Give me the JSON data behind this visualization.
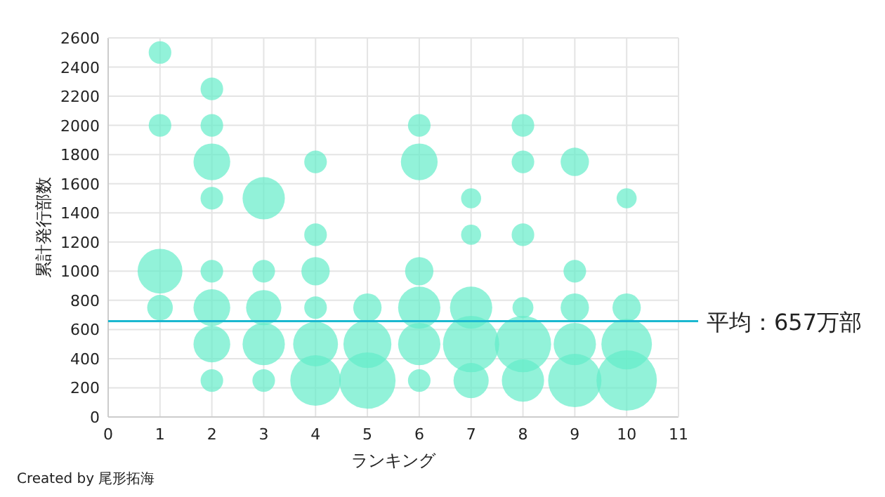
{
  "chart_data": {
    "type": "bubble",
    "xlabel": "ランキング",
    "ylabel": "累計発行部数",
    "series": [
      {
        "color": "#64ecc9",
        "x": [
          1,
          1,
          1,
          1,
          2,
          2,
          2,
          2,
          2,
          2,
          2,
          2,
          3,
          3,
          3,
          3,
          3,
          4,
          4,
          4,
          4,
          4,
          4,
          5,
          5,
          5,
          6,
          6,
          6,
          6,
          6,
          6,
          7,
          7,
          7,
          7,
          7,
          8,
          8,
          8,
          8,
          8,
          8,
          9,
          9,
          9,
          9,
          9,
          10,
          10,
          10,
          10
        ],
        "values": [
          2500,
          2000,
          1000,
          750,
          2250,
          2000,
          1750,
          1500,
          1000,
          750,
          500,
          250,
          1500,
          1000,
          750,
          500,
          250,
          1750,
          1250,
          1000,
          750,
          500,
          250,
          750,
          500,
          250,
          2000,
          1750,
          1000,
          750,
          500,
          250,
          1500,
          1250,
          750,
          500,
          250,
          2000,
          1750,
          1250,
          750,
          500,
          250,
          1750,
          1000,
          750,
          500,
          250,
          1500,
          750,
          500,
          250
        ],
        "sizes": [
          0.14,
          0.14,
          0.55,
          0.18,
          0.14,
          0.14,
          0.37,
          0.14,
          0.14,
          0.37,
          0.37,
          0.14,
          0.49,
          0.14,
          0.34,
          0.49,
          0.14,
          0.14,
          0.14,
          0.22,
          0.14,
          0.55,
          0.7,
          0.22,
          0.63,
          0.87,
          0.14,
          0.37,
          0.22,
          0.49,
          0.49,
          0.14,
          0.11,
          0.11,
          0.49,
          0.87,
          0.34,
          0.14,
          0.14,
          0.14,
          0.12,
          0.87,
          0.49,
          0.22,
          0.14,
          0.22,
          0.49,
          0.78,
          0.11,
          0.22,
          0.7,
          1
        ]
      }
    ],
    "xlim": [
      0,
      11
    ],
    "xticks": [
      0,
      1,
      2,
      3,
      4,
      5,
      6,
      7,
      8,
      9,
      10,
      11
    ],
    "ylim": [
      0,
      2600
    ],
    "yticks": [
      0,
      200,
      400,
      600,
      800,
      1000,
      1200,
      1400,
      1600,
      1800,
      2000,
      2200,
      2400,
      2600
    ],
    "grid": true,
    "ref_lines": [
      {
        "axis": "y",
        "value": 657,
        "label": "平均：657万部",
        "color": "#1ab8d0"
      }
    ],
    "annotations": [
      "Created by 尾形拓海"
    ]
  }
}
